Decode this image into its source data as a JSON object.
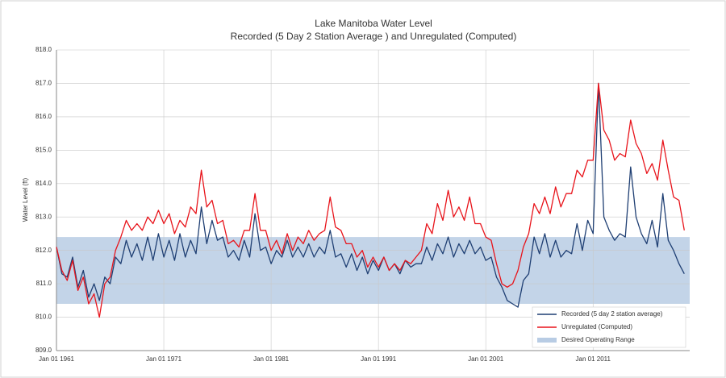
{
  "chart_data": {
    "type": "line",
    "title": "Lake Manitoba Water Level",
    "subtitle": "Recorded (5 Day 2 Station Average ) and Unregulated (Computed)",
    "y_label": "Water Level (ft)",
    "xlim": [
      1961,
      2020
    ],
    "xticks": [
      {
        "value": 1961,
        "label": "Jan 01 1961"
      },
      {
        "value": 1971,
        "label": "Jan 01 1971"
      },
      {
        "value": 1981,
        "label": "Jan 01 1981"
      },
      {
        "value": 1991,
        "label": "Jan 01 1991"
      },
      {
        "value": 2001,
        "label": "Jan 01 2001"
      },
      {
        "value": 2011,
        "label": "Jan 01 2011"
      }
    ],
    "ylim": [
      809,
      818
    ],
    "yticks": [
      {
        "value": 809,
        "label": "809.0"
      },
      {
        "value": 810,
        "label": "810.0"
      },
      {
        "value": 811,
        "label": "811.0"
      },
      {
        "value": 812,
        "label": "812.0"
      },
      {
        "value": 813,
        "label": "813.0"
      },
      {
        "value": 814,
        "label": "814.0"
      },
      {
        "value": 815,
        "label": "815.0"
      },
      {
        "value": 816,
        "label": "816.0"
      },
      {
        "value": 817,
        "label": "817.0"
      },
      {
        "value": 818,
        "label": "818.0"
      }
    ],
    "grid": true,
    "legend": "bottom-right",
    "band": {
      "name": "Desired Operating Range",
      "range": [
        810.4,
        812.4
      ],
      "color": "#b8cce4"
    },
    "x": [
      1961,
      1961.5,
      1962,
      1962.5,
      1963,
      1963.5,
      1964,
      1964.5,
      1965,
      1965.5,
      1966,
      1966.5,
      1967,
      1967.5,
      1968,
      1968.5,
      1969,
      1969.5,
      1970,
      1970.5,
      1971,
      1971.5,
      1972,
      1972.5,
      1973,
      1973.5,
      1974,
      1974.5,
      1975,
      1975.5,
      1976,
      1976.5,
      1977,
      1977.5,
      1978,
      1978.5,
      1979,
      1979.5,
      1980,
      1980.5,
      1981,
      1981.5,
      1982,
      1982.5,
      1983,
      1983.5,
      1984,
      1984.5,
      1985,
      1985.5,
      1986,
      1986.5,
      1987,
      1987.5,
      1988,
      1988.5,
      1989,
      1989.5,
      1990,
      1990.5,
      1991,
      1991.5,
      1992,
      1992.5,
      1993,
      1993.5,
      1994,
      1994.5,
      1995,
      1995.5,
      1996,
      1996.5,
      1997,
      1997.5,
      1998,
      1998.5,
      1999,
      1999.5,
      2000,
      2000.5,
      2001,
      2001.5,
      2002,
      2002.5,
      2003,
      2003.5,
      2004,
      2004.5,
      2005,
      2005.5,
      2006,
      2006.5,
      2007,
      2007.5,
      2008,
      2008.5,
      2009,
      2009.5,
      2010,
      2010.5,
      2011,
      2011.5,
      2012,
      2012.5,
      2013,
      2013.5,
      2014,
      2014.5,
      2015,
      2015.5,
      2016,
      2016.5,
      2017,
      2017.5,
      2018,
      2018.5,
      2019,
      2019.5
    ],
    "series": [
      {
        "name": "Recorded (5 day 2 station average)",
        "color": "#1f3f73",
        "values": [
          812.1,
          811.3,
          811.2,
          811.8,
          810.9,
          811.4,
          810.6,
          811.0,
          810.5,
          811.2,
          811.0,
          811.8,
          811.6,
          812.3,
          811.8,
          812.2,
          811.7,
          812.4,
          811.7,
          812.5,
          811.8,
          812.3,
          811.7,
          812.5,
          811.8,
          812.3,
          811.9,
          813.3,
          812.2,
          812.9,
          812.3,
          812.4,
          811.8,
          812.0,
          811.7,
          812.3,
          811.8,
          813.1,
          812.0,
          812.1,
          811.6,
          812.0,
          811.8,
          812.3,
          811.8,
          812.1,
          811.8,
          812.2,
          811.8,
          812.1,
          811.9,
          812.6,
          811.8,
          811.9,
          811.5,
          811.9,
          811.4,
          811.8,
          811.3,
          811.7,
          811.4,
          811.8,
          811.4,
          811.6,
          811.3,
          811.7,
          811.5,
          811.6,
          811.6,
          812.1,
          811.7,
          812.2,
          811.9,
          812.4,
          811.8,
          812.2,
          811.9,
          812.3,
          811.9,
          812.1,
          811.7,
          811.8,
          811.2,
          810.9,
          810.5,
          810.4,
          810.3,
          811.1,
          811.3,
          812.4,
          811.9,
          812.5,
          811.8,
          812.3,
          811.8,
          812.0,
          811.9,
          812.8,
          812.0,
          812.9,
          812.5,
          817.0,
          813.0,
          812.6,
          812.3,
          812.5,
          812.4,
          814.5,
          813.0,
          812.5,
          812.2,
          812.9,
          812.1,
          813.7,
          812.3,
          812.0,
          811.6,
          811.3
        ]
      },
      {
        "name": "Unregulated (Computed)",
        "color": "#e8141b",
        "values": [
          812.1,
          811.4,
          811.1,
          811.7,
          810.8,
          811.2,
          810.4,
          810.7,
          810.0,
          811.0,
          811.2,
          812.0,
          812.4,
          812.9,
          812.6,
          812.8,
          812.6,
          813.0,
          812.8,
          813.2,
          812.8,
          813.1,
          812.5,
          812.9,
          812.7,
          813.3,
          813.1,
          814.4,
          813.3,
          813.5,
          812.8,
          812.9,
          812.2,
          812.3,
          812.1,
          812.6,
          812.6,
          813.7,
          812.6,
          812.6,
          812.0,
          812.3,
          811.9,
          812.5,
          812.0,
          812.4,
          812.2,
          812.6,
          812.3,
          812.5,
          812.6,
          813.6,
          812.7,
          812.6,
          812.2,
          812.2,
          811.8,
          812.0,
          811.5,
          811.8,
          811.5,
          811.8,
          811.4,
          811.6,
          811.4,
          811.7,
          811.6,
          811.8,
          812.0,
          812.8,
          812.5,
          813.4,
          812.9,
          813.8,
          813.0,
          813.3,
          812.9,
          813.6,
          812.8,
          812.8,
          812.4,
          812.3,
          811.6,
          811.0,
          810.9,
          811.0,
          811.4,
          812.1,
          812.5,
          813.4,
          813.1,
          813.6,
          813.1,
          813.9,
          813.3,
          813.7,
          813.7,
          814.4,
          814.2,
          814.7,
          814.7,
          817.0,
          815.6,
          815.3,
          814.7,
          814.9,
          814.8,
          815.9,
          815.2,
          814.9,
          814.3,
          814.6,
          814.1,
          815.3,
          814.4,
          813.6,
          813.5,
          812.6
        ]
      }
    ]
  }
}
